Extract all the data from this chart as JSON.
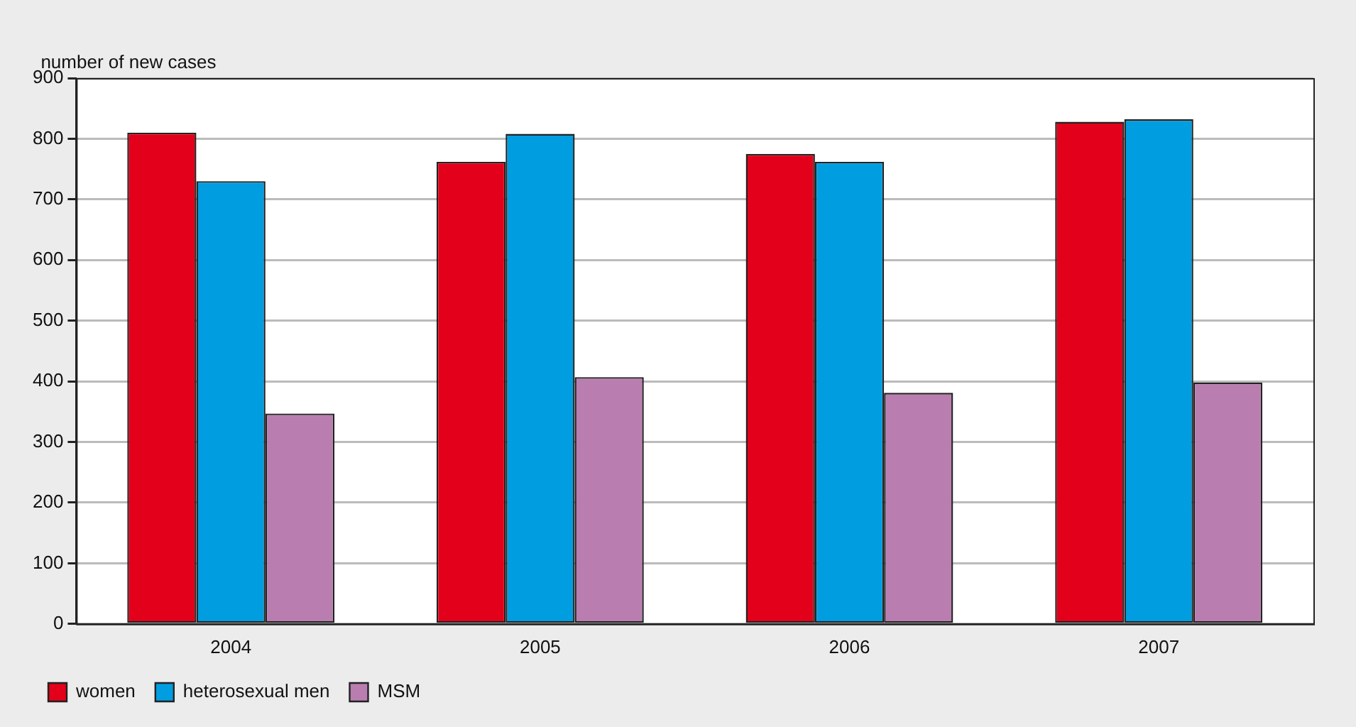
{
  "chart_data": {
    "type": "bar",
    "ylabel": "number of new cases",
    "categories": [
      "2004",
      "2005",
      "2006",
      "2007"
    ],
    "series": [
      {
        "name": "women",
        "color": "#e2001a",
        "values": [
          810,
          762,
          775,
          828
        ]
      },
      {
        "name": "heterosexual men",
        "color": "#009ee0",
        "values": [
          730,
          808,
          762,
          832
        ]
      },
      {
        "name": "MSM",
        "color": "#b97eaf",
        "values": [
          347,
          407,
          381,
          398
        ]
      }
    ],
    "ylim": [
      0,
      900
    ],
    "yticks": [
      0,
      100,
      200,
      300,
      400,
      500,
      600,
      700,
      800,
      900
    ],
    "grid": "y",
    "legend": "bottom"
  }
}
